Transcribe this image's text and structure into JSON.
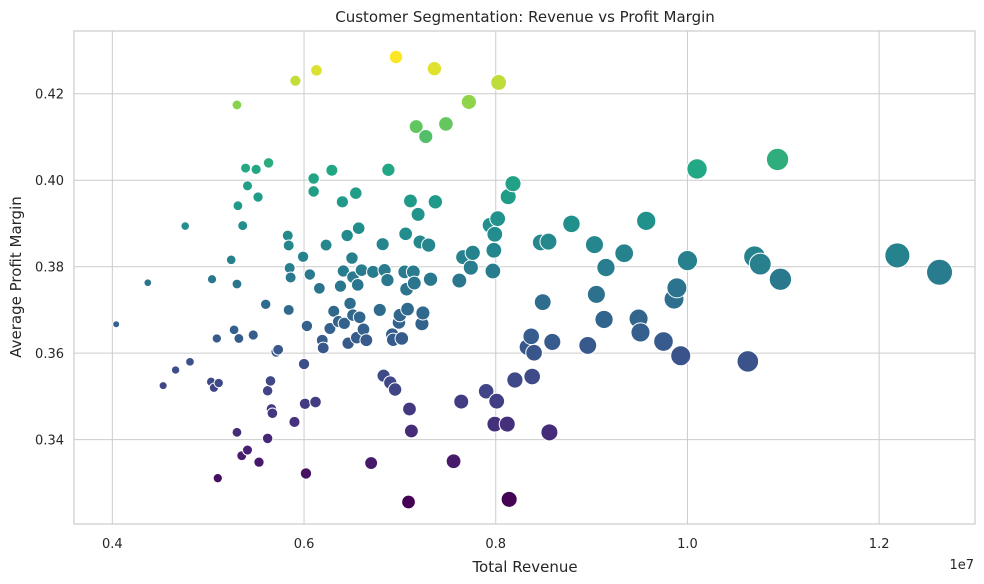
{
  "chart_data": {
    "type": "scatter",
    "title": "Customer Segmentation: Revenue vs Profit Margin",
    "xlabel": "Total Revenue",
    "ylabel": "Average Profit Margin",
    "x_offset_label": "1e7",
    "xlim": [
      3600000,
      13000000
    ],
    "ylim": [
      0.3205,
      0.4345
    ],
    "x_ticks": [
      4000000,
      6000000,
      8000000,
      10000000,
      12000000
    ],
    "x_tick_labels": [
      "0.4",
      "0.6",
      "0.8",
      "1.0",
      "1.2"
    ],
    "y_ticks": [
      0.34,
      0.36,
      0.38,
      0.4,
      0.42
    ],
    "y_tick_labels": [
      "0.34",
      "0.36",
      "0.38",
      "0.40",
      "0.42"
    ],
    "grid": true,
    "legend": "none",
    "colormap": "viridis",
    "color_encodes": "y",
    "size_encodes": "x",
    "points": [
      [
        4040000,
        0.3667
      ],
      [
        4370000,
        0.3763
      ],
      [
        4530000,
        0.3525
      ],
      [
        4660000,
        0.3561
      ],
      [
        4760000,
        0.3894
      ],
      [
        4810000,
        0.358
      ],
      [
        5030000,
        0.3534
      ],
      [
        5040000,
        0.3771
      ],
      [
        5060000,
        0.352
      ],
      [
        5090000,
        0.3634
      ],
      [
        5100000,
        0.3311
      ],
      [
        5110000,
        0.3531
      ],
      [
        5240000,
        0.3816
      ],
      [
        5270000,
        0.3654
      ],
      [
        5300000,
        0.3417
      ],
      [
        5300000,
        0.4174
      ],
      [
        5300000,
        0.376
      ],
      [
        5310000,
        0.3941
      ],
      [
        5320000,
        0.3634
      ],
      [
        5350000,
        0.3363
      ],
      [
        5360000,
        0.3895
      ],
      [
        5390000,
        0.4028
      ],
      [
        5410000,
        0.3376
      ],
      [
        5410000,
        0.3987
      ],
      [
        5470000,
        0.3642
      ],
      [
        5500000,
        0.4025
      ],
      [
        5520000,
        0.3961
      ],
      [
        5530000,
        0.3348
      ],
      [
        5600000,
        0.3713
      ],
      [
        5620000,
        0.3513
      ],
      [
        5620000,
        0.3403
      ],
      [
        5630000,
        0.404
      ],
      [
        5650000,
        0.3536
      ],
      [
        5660000,
        0.3471
      ],
      [
        5670000,
        0.3461
      ],
      [
        5710000,
        0.3603
      ],
      [
        5730000,
        0.3608
      ],
      [
        5830000,
        0.3872
      ],
      [
        5840000,
        0.3849
      ],
      [
        5840000,
        0.37
      ],
      [
        5850000,
        0.3797
      ],
      [
        5860000,
        0.3775
      ],
      [
        5900000,
        0.3441
      ],
      [
        5910000,
        0.423
      ],
      [
        5990000,
        0.3823
      ],
      [
        6000000,
        0.3575
      ],
      [
        6010000,
        0.3483
      ],
      [
        6020000,
        0.3322
      ],
      [
        6030000,
        0.3663
      ],
      [
        6060000,
        0.3782
      ],
      [
        6100000,
        0.4004
      ],
      [
        6100000,
        0.3974
      ],
      [
        6120000,
        0.3487
      ],
      [
        6130000,
        0.4254
      ],
      [
        6160000,
        0.375
      ],
      [
        6190000,
        0.363
      ],
      [
        6200000,
        0.3612
      ],
      [
        6230000,
        0.385
      ],
      [
        6270000,
        0.3657
      ],
      [
        6290000,
        0.4023
      ],
      [
        6310000,
        0.3697
      ],
      [
        6360000,
        0.3673
      ],
      [
        6380000,
        0.3755
      ],
      [
        6400000,
        0.395
      ],
      [
        6410000,
        0.379
      ],
      [
        6420000,
        0.3669
      ],
      [
        6450000,
        0.3872
      ],
      [
        6460000,
        0.3623
      ],
      [
        6480000,
        0.3715
      ],
      [
        6500000,
        0.382
      ],
      [
        6510000,
        0.3688
      ],
      [
        6510000,
        0.3776
      ],
      [
        6540000,
        0.397
      ],
      [
        6550000,
        0.3636
      ],
      [
        6560000,
        0.3758
      ],
      [
        6570000,
        0.3889
      ],
      [
        6580000,
        0.3683
      ],
      [
        6600000,
        0.3792
      ],
      [
        6620000,
        0.3655
      ],
      [
        6650000,
        0.363
      ],
      [
        6700000,
        0.3346
      ],
      [
        6720000,
        0.3788
      ],
      [
        6790000,
        0.37
      ],
      [
        6820000,
        0.3852
      ],
      [
        6830000,
        0.3548
      ],
      [
        6840000,
        0.3792
      ],
      [
        6870000,
        0.3769
      ],
      [
        6880000,
        0.4024
      ],
      [
        6900000,
        0.3532
      ],
      [
        6920000,
        0.3643
      ],
      [
        6930000,
        0.3631
      ],
      [
        6950000,
        0.3516
      ],
      [
        6960000,
        0.4285
      ],
      [
        6990000,
        0.3671
      ],
      [
        7000000,
        0.3688
      ],
      [
        7020000,
        0.3634
      ],
      [
        7050000,
        0.3788
      ],
      [
        7060000,
        0.3876
      ],
      [
        7070000,
        0.3748
      ],
      [
        7080000,
        0.3702
      ],
      [
        7090000,
        0.3256
      ],
      [
        7100000,
        0.3471
      ],
      [
        7110000,
        0.3952
      ],
      [
        7120000,
        0.342
      ],
      [
        7140000,
        0.3788
      ],
      [
        7150000,
        0.3762
      ],
      [
        7170000,
        0.4124
      ],
      [
        7190000,
        0.3921
      ],
      [
        7210000,
        0.3857
      ],
      [
        7230000,
        0.3668
      ],
      [
        7240000,
        0.3693
      ],
      [
        7270000,
        0.4101
      ],
      [
        7300000,
        0.385
      ],
      [
        7320000,
        0.3771
      ],
      [
        7360000,
        0.4258
      ],
      [
        7370000,
        0.395
      ],
      [
        7480000,
        0.413
      ],
      [
        7560000,
        0.335
      ],
      [
        7620000,
        0.3768
      ],
      [
        7640000,
        0.3488
      ],
      [
        7660000,
        0.3822
      ],
      [
        7720000,
        0.4181
      ],
      [
        7740000,
        0.3798
      ],
      [
        7760000,
        0.3832
      ],
      [
        7900000,
        0.3512
      ],
      [
        7940000,
        0.3896
      ],
      [
        7970000,
        0.379
      ],
      [
        7980000,
        0.3838
      ],
      [
        7990000,
        0.3436
      ],
      [
        7990000,
        0.3875
      ],
      [
        8010000,
        0.3489
      ],
      [
        8020000,
        0.3911
      ],
      [
        8030000,
        0.4226
      ],
      [
        8120000,
        0.3436
      ],
      [
        8130000,
        0.3962
      ],
      [
        8140000,
        0.3262
      ],
      [
        8180000,
        0.3992
      ],
      [
        8200000,
        0.3538
      ],
      [
        8330000,
        0.3614
      ],
      [
        8370000,
        0.3639
      ],
      [
        8380000,
        0.3546
      ],
      [
        8400000,
        0.3601
      ],
      [
        8470000,
        0.3856
      ],
      [
        8490000,
        0.3718
      ],
      [
        8550000,
        0.3858
      ],
      [
        8560000,
        0.3417
      ],
      [
        8590000,
        0.3626
      ],
      [
        8790000,
        0.3899
      ],
      [
        8960000,
        0.3618
      ],
      [
        9030000,
        0.3851
      ],
      [
        9050000,
        0.3736
      ],
      [
        9130000,
        0.3678
      ],
      [
        9150000,
        0.3798
      ],
      [
        9340000,
        0.3831
      ],
      [
        9490000,
        0.368
      ],
      [
        9510000,
        0.3648
      ],
      [
        9570000,
        0.3906
      ],
      [
        9750000,
        0.3627
      ],
      [
        9860000,
        0.3725
      ],
      [
        9890000,
        0.3751
      ],
      [
        9930000,
        0.3594
      ],
      [
        10000000,
        0.3814
      ],
      [
        10100000,
        0.4026
      ],
      [
        10630000,
        0.3581
      ],
      [
        10700000,
        0.3823
      ],
      [
        10760000,
        0.3806
      ],
      [
        10940000,
        0.4048
      ],
      [
        10970000,
        0.3771
      ],
      [
        12190000,
        0.3826
      ],
      [
        12630000,
        0.3787
      ]
    ]
  }
}
